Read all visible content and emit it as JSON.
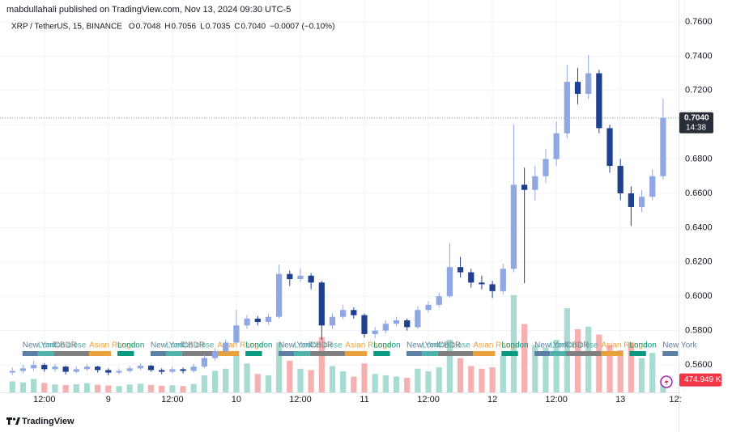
{
  "chart_data": {
    "type": "candlestick",
    "header": "mabdullahali published on TradingView.com, Nov 13, 2024 09:30 UTC-5",
    "symbol": "XRP / TetherUS, 15, BINANCE",
    "legend": [
      {
        "key": "O",
        "value": 0.7048,
        "label": "0.7048"
      },
      {
        "key": "H",
        "value": 0.7056,
        "label": "0.7056"
      },
      {
        "key": "L",
        "value": 0.7035,
        "label": "0.7035"
      },
      {
        "key": "C",
        "value": 0.704,
        "label": "0.7040"
      }
    ],
    "change": {
      "value": -0.0007,
      "label": "−0.0007"
    },
    "change_pct": {
      "value": -0.1,
      "label": "(−0.10%)"
    },
    "last_price": {
      "value": 0.704,
      "label": "0.7040"
    },
    "countdown": "14:38",
    "footer": "TradingView",
    "up_color": "#8fa8e3",
    "down_color": "#1f3f8f",
    "volume_up_color": "#a8dcd3",
    "volume_down_color": "#f5b0b0",
    "grid": true,
    "xlim": [
      4.9,
      130.9
    ],
    "ylim": [
      0.544,
      0.7727
    ],
    "volume_lim": [
      0,
      4000000
    ],
    "xticks": [
      {
        "value": 12,
        "label": "12:00"
      },
      {
        "value": 24,
        "label": "9"
      },
      {
        "value": 36,
        "label": "12:00"
      },
      {
        "value": 48,
        "label": "10"
      },
      {
        "value": 60,
        "label": "12:00"
      },
      {
        "value": 72,
        "label": "11"
      },
      {
        "value": 84,
        "label": "12:00"
      },
      {
        "value": 96,
        "label": "12"
      },
      {
        "value": 108,
        "label": "12:00"
      },
      {
        "value": 120,
        "label": "13"
      },
      {
        "value": 132,
        "label": "12:"
      }
    ],
    "yticks": [
      {
        "value": 0.56,
        "label": "0.5600"
      },
      {
        "value": 0.58,
        "label": "0.5800"
      },
      {
        "value": 0.6,
        "label": "0.6000"
      },
      {
        "value": 0.62,
        "label": "0.6200"
      },
      {
        "value": 0.64,
        "label": "0.6400"
      },
      {
        "value": 0.66,
        "label": "0.6600"
      },
      {
        "value": 0.68,
        "label": "0.6800"
      },
      {
        "value": 0.7,
        "label": "0.7000"
      },
      {
        "value": 0.72,
        "label": "0.7200"
      },
      {
        "value": 0.74,
        "label": "0.7400"
      },
      {
        "value": 0.76,
        "label": "0.7600"
      }
    ],
    "x": [
      6,
      8,
      10,
      12,
      14,
      16,
      18,
      20,
      22,
      24,
      26,
      28,
      30,
      32,
      34,
      36,
      38,
      40,
      42,
      44,
      46,
      48,
      50,
      52,
      54,
      56,
      58,
      60,
      62,
      64,
      66,
      68,
      70,
      72,
      74,
      76,
      78,
      80,
      82,
      84,
      86,
      88,
      90,
      92,
      94,
      96,
      98,
      100,
      102,
      104,
      106,
      108,
      110,
      112,
      114,
      116,
      118,
      120,
      122,
      124,
      126,
      128
    ],
    "open": [
      0.5555,
      0.5565,
      0.558,
      0.56,
      0.5575,
      0.559,
      0.556,
      0.5575,
      0.559,
      0.557,
      0.5555,
      0.5565,
      0.558,
      0.5595,
      0.557,
      0.556,
      0.5575,
      0.5565,
      0.559,
      0.564,
      0.568,
      0.573,
      0.583,
      0.587,
      0.585,
      0.588,
      0.613,
      0.61,
      0.612,
      0.608,
      0.583,
      0.588,
      0.592,
      0.589,
      0.578,
      0.58,
      0.584,
      0.586,
      0.582,
      0.592,
      0.595,
      0.6,
      0.617,
      0.614,
      0.608,
      0.607,
      0.603,
      0.616,
      0.665,
      0.662,
      0.67,
      0.68,
      0.695,
      0.725,
      0.718,
      0.73,
      0.698,
      0.676,
      0.66,
      0.652,
      0.658,
      0.67
    ],
    "high": [
      0.5585,
      0.56,
      0.5625,
      0.561,
      0.5605,
      0.5595,
      0.559,
      0.5605,
      0.5595,
      0.558,
      0.558,
      0.5595,
      0.561,
      0.56,
      0.558,
      0.559,
      0.5585,
      0.5605,
      0.566,
      0.57,
      0.575,
      0.5921,
      0.589,
      0.5885,
      0.59,
      0.6185,
      0.615,
      0.6165,
      0.6135,
      0.609,
      0.59,
      0.595,
      0.5935,
      0.59,
      0.582,
      0.586,
      0.588,
      0.587,
      0.594,
      0.597,
      0.602,
      0.631,
      0.623,
      0.616,
      0.612,
      0.609,
      0.619,
      0.7,
      0.675,
      0.676,
      0.686,
      0.702,
      0.735,
      0.733,
      0.7407,
      0.732,
      0.7,
      0.68,
      0.664,
      0.662,
      0.674,
      0.7152
    ],
    "low": [
      0.554,
      0.555,
      0.5565,
      0.556,
      0.556,
      0.5545,
      0.555,
      0.5565,
      0.5555,
      0.554,
      0.5545,
      0.5555,
      0.557,
      0.556,
      0.5545,
      0.555,
      0.555,
      0.5555,
      0.558,
      0.5625,
      0.5665,
      0.572,
      0.581,
      0.583,
      0.5835,
      0.587,
      0.606,
      0.6085,
      0.604,
      0.5746,
      0.581,
      0.5865,
      0.587,
      0.576,
      0.5755,
      0.5785,
      0.5825,
      0.58,
      0.581,
      0.5905,
      0.5935,
      0.599,
      0.611,
      0.605,
      0.604,
      0.599,
      0.601,
      0.614,
      0.6076,
      0.656,
      0.666,
      0.676,
      0.692,
      0.712,
      0.715,
      0.695,
      0.672,
      0.656,
      0.641,
      0.649,
      0.656,
      0.668
    ],
    "close": [
      0.5565,
      0.558,
      0.56,
      0.5575,
      0.559,
      0.556,
      0.5575,
      0.559,
      0.557,
      0.5555,
      0.5565,
      0.558,
      0.5595,
      0.557,
      0.556,
      0.5575,
      0.5565,
      0.559,
      0.564,
      0.568,
      0.573,
      0.583,
      0.587,
      0.585,
      0.588,
      0.613,
      0.61,
      0.612,
      0.608,
      0.583,
      0.588,
      0.592,
      0.589,
      0.578,
      0.58,
      0.584,
      0.586,
      0.582,
      0.592,
      0.595,
      0.6,
      0.617,
      0.614,
      0.608,
      0.607,
      0.603,
      0.616,
      0.665,
      0.662,
      0.67,
      0.68,
      0.695,
      0.725,
      0.718,
      0.73,
      0.698,
      0.676,
      0.66,
      0.652,
      0.658,
      0.67,
      0.704
    ],
    "volume": [
      420000,
      380000,
      510000,
      360000,
      300000,
      280000,
      310000,
      350000,
      290000,
      260000,
      240000,
      300000,
      330000,
      280000,
      250000,
      270000,
      240000,
      320000,
      650000,
      820000,
      900000,
      1400000,
      1100000,
      700000,
      650000,
      1900000,
      1200000,
      900000,
      850000,
      2100000,
      1000000,
      800000,
      600000,
      1100000,
      700000,
      650000,
      600000,
      550000,
      900000,
      800000,
      950000,
      2000000,
      1300000,
      1000000,
      900000,
      950000,
      1400000,
      3700000,
      2600000,
      1800000,
      1700000,
      2000000,
      3200000,
      2400000,
      2500000,
      2200000,
      1800000,
      1600000,
      1900000,
      1300000,
      1500000,
      474949
    ],
    "volume_labels": [
      null,
      null,
      null,
      null,
      null,
      null,
      null,
      null,
      null,
      null,
      null,
      null,
      null,
      null,
      null,
      null,
      null,
      null,
      null,
      null,
      null,
      null,
      null,
      null,
      null,
      null,
      null,
      null,
      null,
      null,
      null,
      null,
      null,
      null,
      null,
      null,
      null,
      null,
      null,
      null,
      null,
      null,
      null,
      null,
      null,
      null,
      null,
      null,
      null,
      null,
      null,
      null,
      null,
      null,
      null,
      null,
      null,
      null,
      null,
      null,
      null,
      "474.949 K"
    ],
    "sessions": [
      {
        "name": "New York",
        "color": "#5d7fa3",
        "start": 7.9,
        "end": 10.8
      },
      {
        "name": "London close",
        "color": "#4fb3a9",
        "start": 10.8,
        "end": 13.8
      },
      {
        "name": "CBDR",
        "color": "#808080",
        "start": 13.8,
        "end": 20.4
      },
      {
        "name": "Asian Range",
        "color": "#e9a23b",
        "start": 20.4,
        "end": 24.5
      },
      {
        "name": "London",
        "color": "#089981",
        "start": 25.7,
        "end": 28.8
      },
      {
        "name": "New York",
        "color": "#5d7fa3",
        "start": 31.9,
        "end": 34.8
      },
      {
        "name": "London close",
        "color": "#4fb3a9",
        "start": 34.8,
        "end": 37.8
      },
      {
        "name": "CBDR",
        "color": "#808080",
        "start": 37.8,
        "end": 44.4
      },
      {
        "name": "Asian Range",
        "color": "#e9a23b",
        "start": 44.4,
        "end": 48.5
      },
      {
        "name": "London",
        "color": "#089981",
        "start": 49.7,
        "end": 52.8
      },
      {
        "name": "New York",
        "color": "#5d7fa3",
        "start": 55.9,
        "end": 58.8
      },
      {
        "name": "London close",
        "color": "#4fb3a9",
        "start": 58.8,
        "end": 61.8
      },
      {
        "name": "CBDR",
        "color": "#808080",
        "start": 61.8,
        "end": 68.4
      },
      {
        "name": "Asian Range",
        "color": "#e9a23b",
        "start": 68.4,
        "end": 72.5
      },
      {
        "name": "London",
        "color": "#089981",
        "start": 73.7,
        "end": 76.8
      },
      {
        "name": "New York",
        "color": "#5d7fa3",
        "start": 79.9,
        "end": 82.8
      },
      {
        "name": "London close",
        "color": "#4fb3a9",
        "start": 82.8,
        "end": 85.8
      },
      {
        "name": "CBDR",
        "color": "#808080",
        "start": 85.8,
        "end": 92.4
      },
      {
        "name": "Asian Range",
        "color": "#e9a23b",
        "start": 92.4,
        "end": 96.5
      },
      {
        "name": "London",
        "color": "#089981",
        "start": 97.7,
        "end": 100.8
      },
      {
        "name": "New York",
        "color": "#5d7fa3",
        "start": 103.9,
        "end": 106.8
      },
      {
        "name": "London close",
        "color": "#4fb3a9",
        "start": 106.8,
        "end": 109.8
      },
      {
        "name": "CBDR",
        "color": "#808080",
        "start": 109.8,
        "end": 116.4
      },
      {
        "name": "Asian Range",
        "color": "#e9a23b",
        "start": 116.4,
        "end": 120.5
      },
      {
        "name": "London",
        "color": "#089981",
        "start": 121.7,
        "end": 124.8
      },
      {
        "name": "New York",
        "color": "#5d7fa3",
        "start": 127.9,
        "end": 130.8
      }
    ]
  }
}
